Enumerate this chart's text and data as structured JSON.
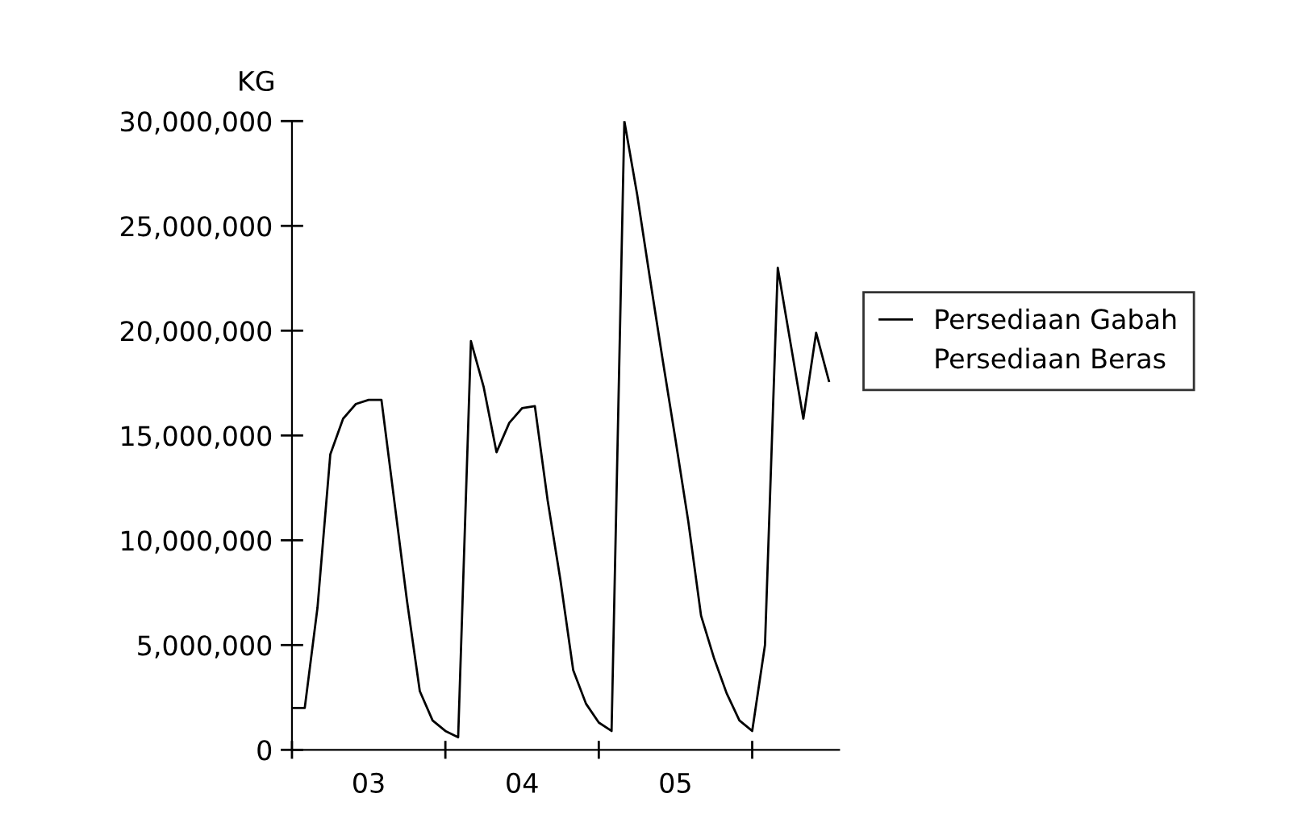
{
  "chart_data": {
    "type": "line",
    "ylabel": "KG",
    "legend": "right",
    "grid": false,
    "marker": "none",
    "line_style": "solid",
    "categories": [
      null,
      null,
      null,
      null,
      null,
      null,
      "03",
      null,
      null,
      null,
      null,
      null,
      null,
      null,
      null,
      null,
      null,
      null,
      "04",
      null,
      null,
      null,
      null,
      null,
      null,
      null,
      null,
      null,
      null,
      null,
      "05",
      null,
      null,
      null,
      null,
      null,
      null,
      null,
      null,
      null,
      null,
      null,
      null
    ],
    "ylim": [
      0,
      30000000
    ],
    "yticks": [
      {
        "value": 0,
        "label": "0"
      },
      {
        "value": 5000000,
        "label": "5,000,000"
      },
      {
        "value": 10000000,
        "label": "10,000,000"
      },
      {
        "value": 15000000,
        "label": "15,000,000"
      },
      {
        "value": 20000000,
        "label": "20,000,000"
      },
      {
        "value": 25000000,
        "label": "25,000,000"
      },
      {
        "value": 30000000,
        "label": "30,000,000"
      }
    ],
    "series": [
      {
        "name": "Persediaan Gabah",
        "color": "#000000",
        "values": [
          2000000,
          2000000,
          6800000,
          14100000,
          15800000,
          16500000,
          16700000,
          16700000,
          11900000,
          7100000,
          2800000,
          1400000,
          900000,
          600000,
          19500000,
          17300000,
          14200000,
          15600000,
          16300000,
          16400000,
          11900000,
          8100000,
          3800000,
          2200000,
          1300000,
          900000,
          30000000,
          26500000,
          22500000,
          18600000,
          14800000,
          10900000,
          6400000,
          4400000,
          2700000,
          1400000,
          900000,
          5000000,
          23000000,
          19400000,
          15800000,
          19900000,
          17600000
        ]
      },
      {
        "name": "Persediaan Beras",
        "values": [
          null,
          null,
          null,
          null,
          null,
          null,
          null,
          null,
          null,
          null,
          null,
          null,
          null,
          null,
          null,
          null,
          null,
          null,
          null,
          null,
          null,
          null,
          null,
          null,
          null,
          null,
          null,
          null,
          null,
          null,
          null,
          null,
          null,
          null,
          null,
          null,
          null,
          null,
          null,
          null,
          null,
          null,
          null
        ]
      }
    ]
  }
}
